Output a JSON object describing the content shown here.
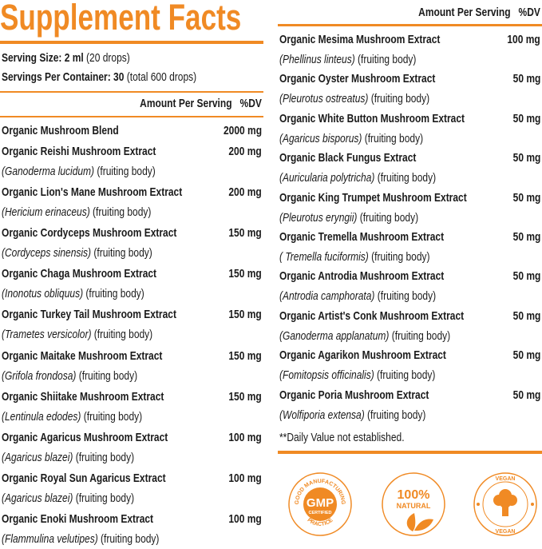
{
  "title": "Supplement Facts",
  "serving_size": {
    "label": "Serving Size:",
    "value": "2 ml",
    "extra": "(20 drops)"
  },
  "servings_per_container": {
    "label": "Servings Per Container:",
    "value": "30",
    "extra": "(total 600 drops)"
  },
  "header": {
    "amount": "Amount Per Serving",
    "dv": "%DV"
  },
  "blend": {
    "name": "Organic Mushroom Blend",
    "amount": "2000 mg"
  },
  "left_items": [
    {
      "name": "Organic Reishi Mushroom Extract",
      "amount": "200 mg",
      "latin": "(Ganoderma lucidum)",
      "part": "(fruiting body)"
    },
    {
      "name": "Organic Lion's Mane Mushroom Extract",
      "amount": "200 mg",
      "latin": "(Hericium erinaceus)",
      "part": "(fruiting body)"
    },
    {
      "name": "Organic Cordyceps Mushroom Extract",
      "amount": "150 mg",
      "latin": "(Cordyceps sinensis)",
      "part": "(fruiting body)"
    },
    {
      "name": "Organic Chaga Mushroom Extract",
      "amount": "150 mg",
      "latin": "(Inonotus obliquus)",
      "part": "(fruiting body)"
    },
    {
      "name": "Organic Turkey Tail Mushroom Extract",
      "amount": "150 mg",
      "latin": "(Trametes versicolor)",
      "part": "(fruiting body)"
    },
    {
      "name": "Organic Maitake Mushroom Extract",
      "amount": "150 mg",
      "latin": "(Grifola frondosa)",
      "part": "(fruiting body)"
    },
    {
      "name": "Organic Shiitake Mushroom Extract",
      "amount": "150 mg",
      "latin": "(Lentinula edodes)",
      "part": "(fruiting body)"
    },
    {
      "name": "Organic Agaricus Mushroom Extract",
      "amount": "100 mg",
      "latin": "(Agaricus blazei)",
      "part": "(fruiting body)"
    },
    {
      "name": "Organic Royal Sun Agaricus Extract",
      "amount": "100 mg",
      "latin": "(Agaricus blazei)",
      "part": "(fruiting body)"
    },
    {
      "name": "Organic Enoki Mushroom Extract",
      "amount": "100 mg",
      "latin": "(Flammulina velutipes)",
      "part": "(fruiting body)"
    }
  ],
  "right_items": [
    {
      "name": "Organic Mesima Mushroom Extract",
      "amount": "100 mg",
      "latin": "(Phellinus linteus)",
      "part": "(fruiting body)"
    },
    {
      "name": "Organic Oyster Mushroom Extract",
      "amount": "50 mg",
      "latin": "(Pleurotus ostreatus)",
      "part": "(fruiting body)"
    },
    {
      "name": "Organic White Button Mushroom Extract",
      "amount": "50 mg",
      "latin": "(Agaricus bisporus)",
      "part": "(fruiting body)"
    },
    {
      "name": "Organic Black Fungus Extract",
      "amount": "50 mg",
      "latin": "(Auricularia polytricha)",
      "part": "(fruiting body)"
    },
    {
      "name": "Organic King Trumpet Mushroom Extract",
      "amount": "50 mg",
      "latin": "(Pleurotus eryngii)",
      "part": "(fruiting body)"
    },
    {
      "name": "Organic Tremella Mushroom Extract",
      "amount": "50 mg",
      "latin": "( Tremella fuciformis)",
      "part": "(fruiting body)"
    },
    {
      "name": "Organic Antrodia Mushroom Extract",
      "amount": "50 mg",
      "latin": "(Antrodia camphorata)",
      "part": "(fruiting body)"
    },
    {
      "name": "Organic Artist's Conk Mushroom Extract",
      "amount": "50 mg",
      "latin": "(Ganoderma applanatum)",
      "part": "(fruiting body)"
    },
    {
      "name": "Organic Agarikon Mushroom Extract",
      "amount": "50 mg",
      "latin": "(Fomitopsis officinalis)",
      "part": "(fruiting body)"
    },
    {
      "name": "Organic Poria Mushroom Extract",
      "amount": "50 mg",
      "latin": "(Wolfiporia extensa)",
      "part": "(fruiting body)"
    }
  ],
  "footnote": "**Daily Value not established.",
  "badges": {
    "gmp": {
      "ring_top": "GOOD MANUFACTURING",
      "ring_bottom": "PRACTICE",
      "center": "GMP",
      "sub": "CERTIFIED"
    },
    "natural": {
      "line1": "100%",
      "line2": "NATURAL"
    },
    "vegan": {
      "top": "VEGAN",
      "bottom": "VEGAN"
    }
  },
  "colors": {
    "accent": "#f08a24",
    "text": "#1a1a1a"
  }
}
